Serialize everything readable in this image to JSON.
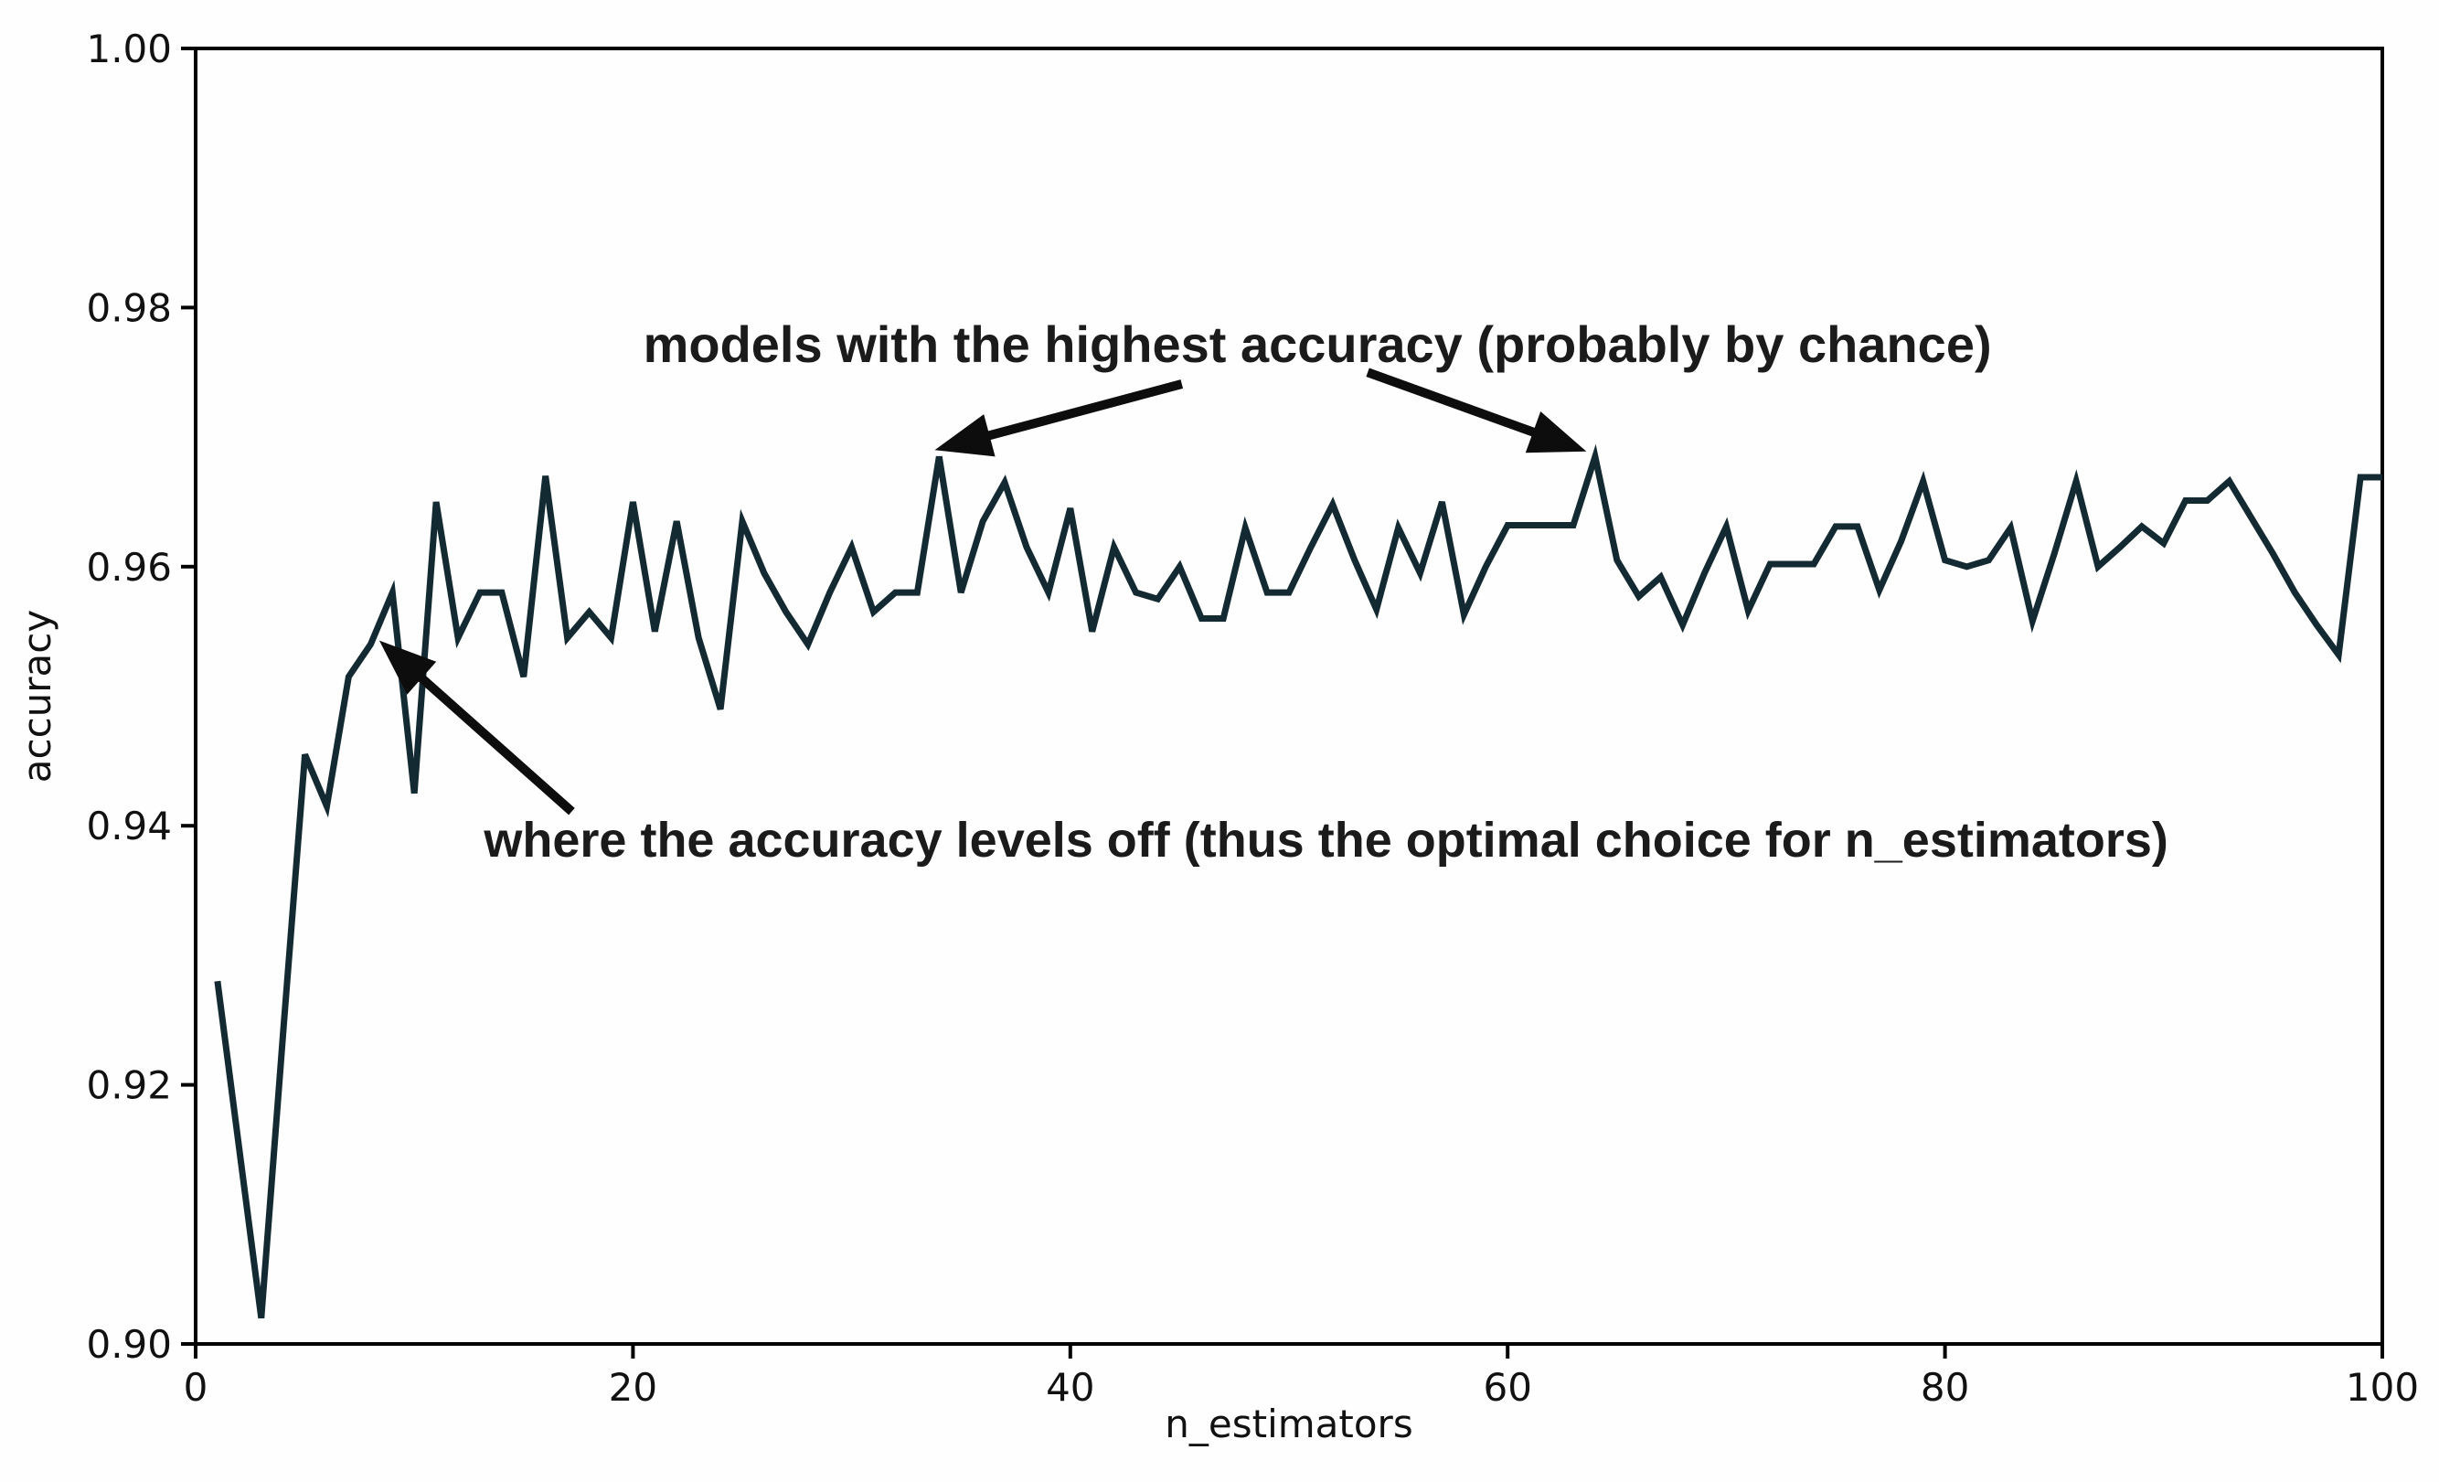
{
  "figure": {
    "background": "#fefefe",
    "plot_border_color": "#000000",
    "text_color": "#111111"
  },
  "chart_data": {
    "type": "line",
    "title": "",
    "xlabel": "n_estimators",
    "ylabel": "accuracy",
    "xlim": [
      0,
      100
    ],
    "ylim": [
      0.9,
      1.0
    ],
    "xticks": [
      0,
      20,
      40,
      60,
      80,
      100
    ],
    "yticks": [
      1.0,
      0.98,
      0.96,
      0.94,
      0.92,
      0.9
    ],
    "grid": false,
    "legend_position": "none",
    "x_start": 1,
    "series": [
      {
        "name": "accuracy",
        "color": "#142a33",
        "values": [
          0.928,
          0.915,
          0.902,
          0.924,
          0.9455,
          0.9415,
          0.9515,
          0.954,
          0.958,
          0.9425,
          0.965,
          0.9545,
          0.958,
          0.958,
          0.9515,
          0.967,
          0.9545,
          0.9565,
          0.9545,
          0.965,
          0.955,
          0.9635,
          0.9545,
          0.949,
          0.9635,
          0.9595,
          0.9565,
          0.954,
          0.958,
          0.9615,
          0.9565,
          0.958,
          0.958,
          0.9685,
          0.958,
          0.9635,
          0.9665,
          0.9615,
          0.958,
          0.9645,
          0.955,
          0.9615,
          0.958,
          0.9575,
          0.96,
          0.956,
          0.956,
          0.963,
          0.958,
          0.958,
          0.9615,
          0.9648,
          0.9605,
          0.9567,
          0.963,
          0.9595,
          0.965,
          0.9563,
          0.96,
          0.9632,
          0.9632,
          0.9632,
          0.9632,
          0.9685,
          0.9605,
          0.9577,
          0.9592,
          0.9555,
          0.9595,
          0.9631,
          0.9566,
          0.9602,
          0.9602,
          0.9602,
          0.9631,
          0.9631,
          0.9582,
          0.962,
          0.9666,
          0.9605,
          0.96,
          0.9605,
          0.963,
          0.9558,
          0.961,
          0.9666,
          0.96,
          0.9615,
          0.9631,
          0.9618,
          0.9651,
          0.9651,
          0.9666,
          0.9638,
          0.961,
          0.958,
          0.9555,
          0.9532,
          0.9669,
          0.9669
        ]
      }
    ],
    "annotations": [
      {
        "id": "highest-accuracy",
        "text": "models with the highest accuracy (probably by chance)",
        "x": 51.3,
        "y": 0.9758,
        "arrows": [
          {
            "from": [
              45.1,
              0.9741
            ],
            "to": [
              33.8,
              0.969
            ]
          },
          {
            "from": [
              53.6,
              0.975
            ],
            "to": [
              63.6,
              0.9689
            ]
          }
        ]
      },
      {
        "id": "levels-off",
        "text": "where the accuracy levels off (thus the optimal choice for n_estimators)",
        "x": 51.7,
        "y": 0.9376,
        "arrows": [
          {
            "from": [
              17.2,
              0.9411
            ],
            "to": [
              8.4,
              0.9543
            ]
          }
        ]
      }
    ]
  }
}
